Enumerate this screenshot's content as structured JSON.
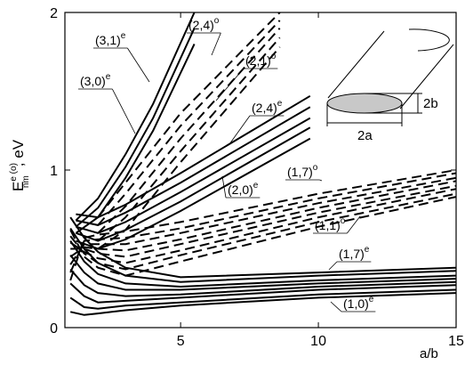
{
  "chart_data": {
    "type": "line",
    "x_label": "a/b",
    "y_label": {
      "symbol": "E",
      "superscript": "e (o)",
      "subscript": "nm",
      "unit": ", eV"
    },
    "xlim": [
      0.8,
      15
    ],
    "ylim": [
      0,
      2
    ],
    "xticks": [
      5,
      10,
      15
    ],
    "yticks": [
      0,
      1,
      2
    ],
    "color": "#000000",
    "series": [
      {
        "dashed": false,
        "x": [
          1,
          1.5,
          2,
          3,
          5,
          10,
          15
        ],
        "values": [
          0.1,
          0.08,
          0.09,
          0.11,
          0.14,
          0.19,
          0.22
        ]
      },
      {
        "dashed": false,
        "x": [
          1,
          1.5,
          2,
          3,
          5,
          10,
          15
        ],
        "values": [
          0.19,
          0.13,
          0.12,
          0.14,
          0.16,
          0.21,
          0.24
        ]
      },
      {
        "dashed": false,
        "x": [
          1,
          1.5,
          2,
          3,
          5,
          10,
          15
        ],
        "values": [
          0.28,
          0.2,
          0.16,
          0.17,
          0.19,
          0.24,
          0.27
        ]
      },
      {
        "dashed": false,
        "x": [
          1,
          1.5,
          2,
          3,
          5,
          10,
          15
        ],
        "values": [
          0.37,
          0.27,
          0.22,
          0.2,
          0.21,
          0.26,
          0.29
        ]
      },
      {
        "dashed": false,
        "x": [
          1,
          1.5,
          2,
          3,
          5,
          10,
          15
        ],
        "values": [
          0.46,
          0.35,
          0.28,
          0.24,
          0.24,
          0.28,
          0.31
        ]
      },
      {
        "dashed": false,
        "x": [
          1,
          1.5,
          2,
          3,
          5,
          10,
          15
        ],
        "values": [
          0.55,
          0.42,
          0.34,
          0.28,
          0.26,
          0.3,
          0.33
        ]
      },
      {
        "dashed": false,
        "x": [
          1,
          1.5,
          2,
          3,
          5,
          10,
          15
        ],
        "values": [
          0.63,
          0.5,
          0.41,
          0.33,
          0.29,
          0.33,
          0.36
        ]
      },
      {
        "dashed": false,
        "x": [
          1,
          1.5,
          2,
          3,
          5,
          10,
          15
        ],
        "values": [
          0.7,
          0.57,
          0.48,
          0.38,
          0.32,
          0.35,
          0.38
        ]
      },
      {
        "dashed": true,
        "x": [
          1,
          1.5,
          2,
          3,
          5,
          10,
          15
        ],
        "values": [
          0.62,
          0.45,
          0.38,
          0.33,
          0.42,
          0.64,
          0.83
        ]
      },
      {
        "dashed": true,
        "x": [
          1,
          1.5,
          2,
          3,
          5,
          10,
          15
        ],
        "values": [
          0.58,
          0.47,
          0.41,
          0.37,
          0.46,
          0.67,
          0.85
        ]
      },
      {
        "dashed": true,
        "x": [
          1,
          1.5,
          2,
          3,
          5,
          10,
          15
        ],
        "values": [
          0.54,
          0.48,
          0.44,
          0.41,
          0.49,
          0.7,
          0.88
        ]
      },
      {
        "dashed": true,
        "x": [
          1,
          1.5,
          2,
          3,
          5,
          10,
          15
        ],
        "values": [
          0.5,
          0.5,
          0.47,
          0.45,
          0.53,
          0.73,
          0.9
        ]
      },
      {
        "dashed": true,
        "x": [
          1,
          1.5,
          2,
          3,
          5,
          10,
          15
        ],
        "values": [
          0.45,
          0.51,
          0.5,
          0.49,
          0.56,
          0.76,
          0.93
        ]
      },
      {
        "dashed": true,
        "x": [
          1,
          1.5,
          2,
          3,
          5,
          10,
          15
        ],
        "values": [
          0.4,
          0.53,
          0.53,
          0.53,
          0.6,
          0.79,
          0.95
        ]
      },
      {
        "dashed": true,
        "x": [
          1,
          1.5,
          2,
          3,
          5,
          10,
          15
        ],
        "values": [
          0.35,
          0.55,
          0.56,
          0.57,
          0.63,
          0.82,
          0.98
        ]
      },
      {
        "dashed": true,
        "x": [
          1,
          1.5,
          2,
          3,
          5,
          10,
          15
        ],
        "values": [
          0.3,
          0.57,
          0.59,
          0.61,
          0.67,
          0.85,
          1.0
        ]
      },
      {
        "dashed": false,
        "x": [
          1.2,
          2,
          3,
          5,
          9.7
        ],
        "values": [
          0.55,
          0.5,
          0.56,
          0.74,
          1.2
        ]
      },
      {
        "dashed": false,
        "x": [
          1.2,
          2,
          3,
          5,
          9.7
        ],
        "values": [
          0.6,
          0.55,
          0.62,
          0.8,
          1.27
        ]
      },
      {
        "dashed": false,
        "x": [
          1.2,
          2,
          3,
          5,
          9.7
        ],
        "values": [
          0.64,
          0.6,
          0.67,
          0.86,
          1.33
        ]
      },
      {
        "dashed": false,
        "x": [
          1.2,
          2,
          3,
          5,
          9.7
        ],
        "values": [
          0.68,
          0.65,
          0.73,
          0.92,
          1.4
        ]
      },
      {
        "dashed": false,
        "x": [
          1.2,
          2,
          3,
          5,
          9.7
        ],
        "values": [
          0.72,
          0.7,
          0.78,
          0.98,
          1.47
        ]
      },
      {
        "dashed": true,
        "x": [
          2,
          3,
          5,
          8.6
        ],
        "values": [
          0.5,
          0.62,
          1.05,
          1.78
        ]
      },
      {
        "dashed": true,
        "x": [
          2,
          3,
          5,
          8.6
        ],
        "values": [
          0.55,
          0.7,
          1.12,
          1.84
        ]
      },
      {
        "dashed": true,
        "x": [
          2,
          3,
          5,
          8.6
        ],
        "values": [
          0.6,
          0.77,
          1.2,
          1.9
        ]
      },
      {
        "dashed": true,
        "x": [
          2,
          3,
          5,
          8.6
        ],
        "values": [
          0.65,
          0.85,
          1.28,
          1.95
        ]
      },
      {
        "dashed": true,
        "x": [
          2,
          3,
          5,
          8.6
        ],
        "values": [
          0.7,
          0.92,
          1.36,
          2.0
        ]
      },
      {
        "dashed": false,
        "x": [
          1.2,
          2,
          3,
          4,
          5.5
        ],
        "values": [
          0.6,
          0.7,
          0.95,
          1.25,
          1.8
        ]
      },
      {
        "dashed": false,
        "x": [
          1.2,
          2,
          3,
          4,
          5.5
        ],
        "values": [
          0.64,
          0.76,
          1.02,
          1.33,
          1.9
        ]
      },
      {
        "dashed": false,
        "x": [
          1.2,
          2,
          3,
          4,
          5.5
        ],
        "values": [
          0.68,
          0.82,
          1.1,
          1.42,
          2.0
        ]
      }
    ],
    "annotations": [
      {
        "text": "(3,1)",
        "sup": "e"
      },
      {
        "text": "(2,4)",
        "sup": "o"
      },
      {
        "text": "(2,1)",
        "sup": "o"
      },
      {
        "text": "(3,0)",
        "sup": "e"
      },
      {
        "text": "(2,4)",
        "sup": "e"
      },
      {
        "text": "(2,0)",
        "sup": "e"
      },
      {
        "text": "(1,7)",
        "sup": "o"
      },
      {
        "text": "(1,1)",
        "sup": "o"
      },
      {
        "text": "(1,7)",
        "sup": "e"
      },
      {
        "text": "(1,0)",
        "sup": "e"
      }
    ]
  },
  "inset": {
    "height_label": "2b",
    "width_label": "2a"
  }
}
